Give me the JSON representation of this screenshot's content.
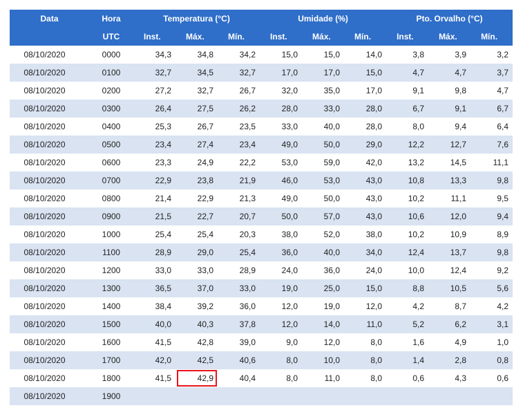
{
  "header": {
    "data_label": "Data",
    "hora_label": "Hora",
    "utc_label": "UTC",
    "groups": [
      "Temperatura (°C)",
      "Umidade (%)",
      "Pto. Orvalho (°C)"
    ],
    "sub": [
      "Inst.",
      "Máx.",
      "Mín.",
      "Inst.",
      "Máx.",
      "Mín.",
      "Inst.",
      "Máx.",
      "Mín."
    ]
  },
  "rows": [
    [
      "08/10/2020",
      "0000",
      "34,3",
      "34,8",
      "34,2",
      "15,0",
      "15,0",
      "14,0",
      "3,8",
      "3,9",
      "3,2"
    ],
    [
      "08/10/2020",
      "0100",
      "32,7",
      "34,5",
      "32,7",
      "17,0",
      "17,0",
      "15,0",
      "4,7",
      "4,7",
      "3,7"
    ],
    [
      "08/10/2020",
      "0200",
      "27,2",
      "32,7",
      "26,7",
      "32,0",
      "35,0",
      "17,0",
      "9,1",
      "9,8",
      "4,7"
    ],
    [
      "08/10/2020",
      "0300",
      "26,4",
      "27,5",
      "26,2",
      "28,0",
      "33,0",
      "28,0",
      "6,7",
      "9,1",
      "6,7"
    ],
    [
      "08/10/2020",
      "0400",
      "25,3",
      "26,7",
      "23,5",
      "33,0",
      "40,0",
      "28,0",
      "8,0",
      "9,4",
      "6,4"
    ],
    [
      "08/10/2020",
      "0500",
      "23,4",
      "27,4",
      "23,4",
      "49,0",
      "50,0",
      "29,0",
      "12,2",
      "12,7",
      "7,6"
    ],
    [
      "08/10/2020",
      "0600",
      "23,3",
      "24,9",
      "22,2",
      "53,0",
      "59,0",
      "42,0",
      "13,2",
      "14,5",
      "11,1"
    ],
    [
      "08/10/2020",
      "0700",
      "22,9",
      "23,8",
      "21,9",
      "46,0",
      "53,0",
      "43,0",
      "10,8",
      "13,3",
      "9,8"
    ],
    [
      "08/10/2020",
      "0800",
      "21,4",
      "22,9",
      "21,3",
      "49,0",
      "50,0",
      "43,0",
      "10,2",
      "11,1",
      "9,5"
    ],
    [
      "08/10/2020",
      "0900",
      "21,5",
      "22,7",
      "20,7",
      "50,0",
      "57,0",
      "43,0",
      "10,6",
      "12,0",
      "9,4"
    ],
    [
      "08/10/2020",
      "1000",
      "25,4",
      "25,4",
      "20,3",
      "38,0",
      "52,0",
      "38,0",
      "10,2",
      "10,9",
      "8,9"
    ],
    [
      "08/10/2020",
      "1100",
      "28,9",
      "29,0",
      "25,4",
      "36,0",
      "40,0",
      "34,0",
      "12,4",
      "13,7",
      "9,8"
    ],
    [
      "08/10/2020",
      "1200",
      "33,0",
      "33,0",
      "28,9",
      "24,0",
      "36,0",
      "24,0",
      "10,0",
      "12,4",
      "9,2"
    ],
    [
      "08/10/2020",
      "1300",
      "36,5",
      "37,0",
      "33,0",
      "19,0",
      "25,0",
      "15,0",
      "8,8",
      "10,5",
      "5,6"
    ],
    [
      "08/10/2020",
      "1400",
      "38,4",
      "39,2",
      "36,0",
      "12,0",
      "19,0",
      "12,0",
      "4,2",
      "8,7",
      "4,2"
    ],
    [
      "08/10/2020",
      "1500",
      "40,0",
      "40,3",
      "37,8",
      "12,0",
      "14,0",
      "11,0",
      "5,2",
      "6,2",
      "3,1"
    ],
    [
      "08/10/2020",
      "1600",
      "41,5",
      "42,8",
      "39,0",
      "9,0",
      "12,0",
      "8,0",
      "1,6",
      "4,9",
      "1,0"
    ],
    [
      "08/10/2020",
      "1700",
      "42,0",
      "42,5",
      "40,6",
      "8,0",
      "10,0",
      "8,0",
      "1,4",
      "2,8",
      "0,8"
    ],
    [
      "08/10/2020",
      "1800",
      "41,5",
      "42,9",
      "40,4",
      "8,0",
      "11,0",
      "8,0",
      "0,6",
      "4,3",
      "0,6"
    ],
    [
      "08/10/2020",
      "1900",
      "",
      "",
      "",
      "",
      "",
      "",
      "",
      "",
      ""
    ]
  ],
  "highlight": {
    "row": 18,
    "col": 3,
    "color": "#e8141b"
  },
  "colors": {
    "header_bg": "#2f6ec9",
    "stripe": "#d9e3f2"
  }
}
